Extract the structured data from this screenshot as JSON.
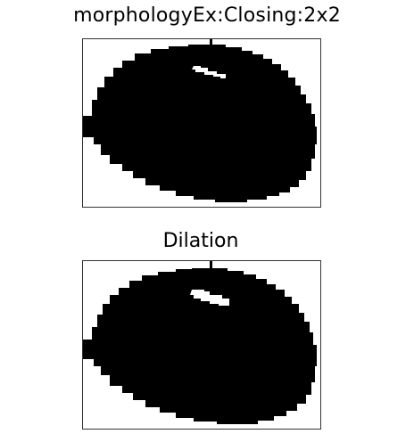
{
  "panels": [
    {
      "title": "morphologyEx:Closing:2x2"
    },
    {
      "title": "Dilation"
    }
  ],
  "colors": {
    "foreground": "#000000",
    "background": "#ffffff",
    "frame": "#333333"
  }
}
